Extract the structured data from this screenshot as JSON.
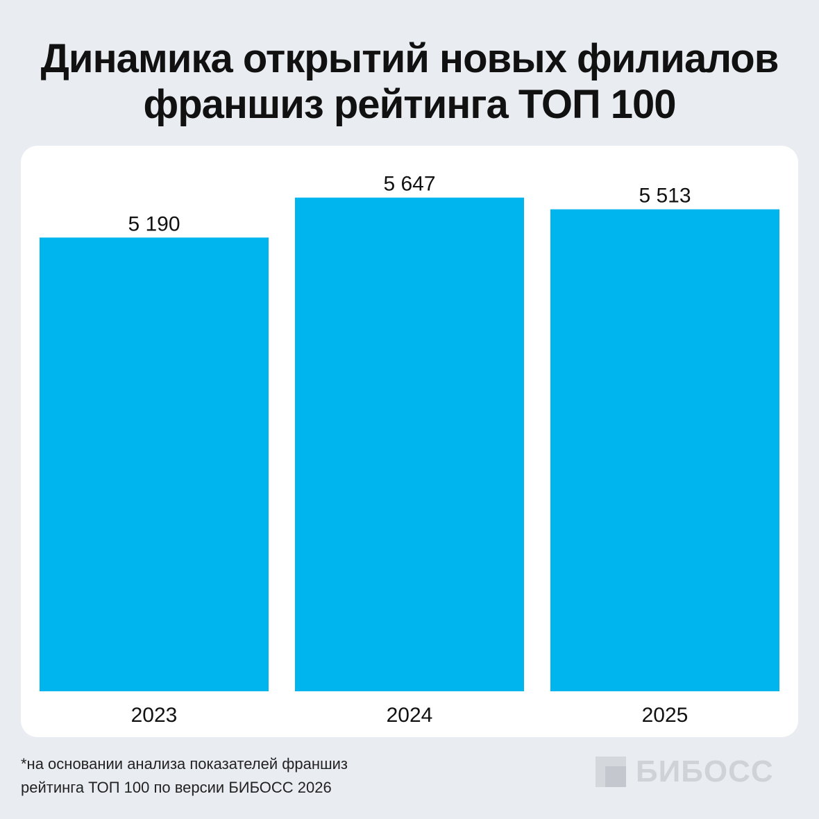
{
  "title": {
    "line1": "Динамика открытий новых филиалов",
    "line2": "франшиз рейтинга ТОП 100"
  },
  "chart_data": {
    "type": "bar",
    "categories": [
      "2023",
      "2024",
      "2025"
    ],
    "values": [
      5190,
      5647,
      5513
    ],
    "value_labels": [
      "5 190",
      "5 647",
      "5 513"
    ],
    "title": "Динамика открытий новых филиалов франшиз рейтинга ТОП 100",
    "xlabel": "",
    "ylabel": "",
    "ylim": [
      0,
      6240
    ],
    "grid": false,
    "legend": "none",
    "bar_color": "#00b4ee"
  },
  "footnote": {
    "line1": "*на основании анализа показателей франшиз",
    "line2": "рейтинга ТОП 100 по версии БИБОСС 2026"
  },
  "logo": {
    "text": "БИБОСС",
    "icon": "bibosс-square-logo-icon",
    "color": "#cfd2d7"
  }
}
